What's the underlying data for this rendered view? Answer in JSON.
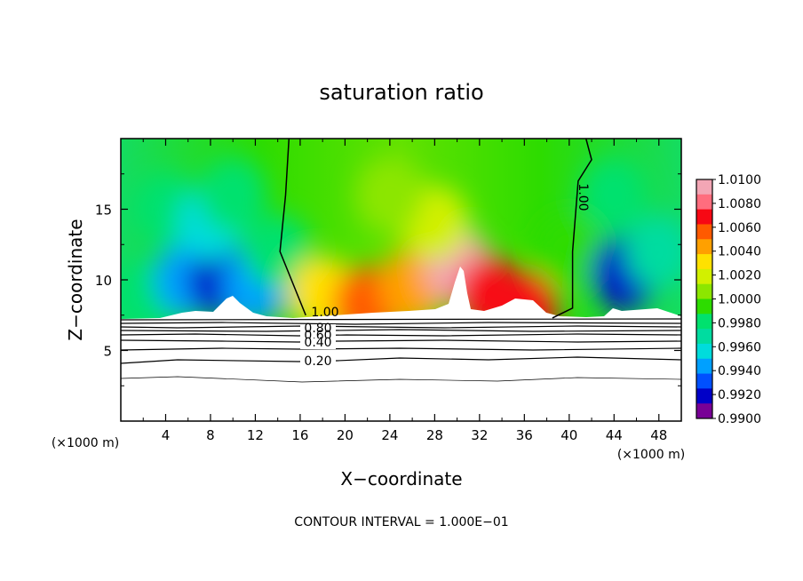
{
  "chart_data": {
    "type": "heatmap",
    "title": "saturation ratio",
    "xlabel": "X−coordinate",
    "ylabel": "Z−coordinate",
    "x_units": "(×1000 m)",
    "z_units": "(×1000 m)",
    "xlim": [
      0,
      50
    ],
    "ylim": [
      0,
      20
    ],
    "x_ticks": [
      4,
      8,
      12,
      16,
      20,
      24,
      28,
      32,
      36,
      40,
      44,
      48
    ],
    "y_ticks": [
      5,
      10,
      15
    ],
    "footer": "CONTOUR INTERVAL = 1.000E−01",
    "colorbar": {
      "min": 0.99,
      "max": 1.01,
      "labels": [
        "1.0100",
        "1.0080",
        "1.0060",
        "1.0040",
        "1.0020",
        "1.0000",
        "0.9980",
        "0.9960",
        "0.9940",
        "0.9920",
        "0.9900"
      ],
      "colors": [
        "#f3a6b5",
        "#ff6d7e",
        "#f70814",
        "#ff5a00",
        "#ffa000",
        "#ffe100",
        "#d2f000",
        "#8ce600",
        "#2ddc00",
        "#00e16e",
        "#00dca0",
        "#00dcdc",
        "#00a0ff",
        "#0050ff",
        "#0000c8",
        "#780096"
      ]
    },
    "contour_labels": [
      "1.00",
      "1.00",
      "0.80",
      "0.60",
      "0.40",
      "0.20"
    ],
    "fill_cells": [
      {
        "x": 2,
        "z": 8.8,
        "v": 0.9975
      },
      {
        "x": 6,
        "z": 10,
        "v": 0.994
      },
      {
        "x": 9,
        "z": 10,
        "v": 0.9915
      },
      {
        "x": 12,
        "z": 9.5,
        "v": 0.9945
      },
      {
        "x": 4,
        "z": 15,
        "v": 0.9975
      },
      {
        "x": 8,
        "z": 14,
        "v": 0.9955
      },
      {
        "x": 10,
        "z": 16,
        "v": 0.9985
      },
      {
        "x": 14,
        "z": 12,
        "v": 0.9985
      },
      {
        "x": 18,
        "z": 9,
        "v": 1.003
      },
      {
        "x": 22,
        "z": 8.3,
        "v": 1.006
      },
      {
        "x": 26,
        "z": 9.5,
        "v": 1.004
      },
      {
        "x": 30,
        "z": 11,
        "v": 1.009
      },
      {
        "x": 33,
        "z": 9,
        "v": 1.007
      },
      {
        "x": 36,
        "z": 8,
        "v": 1.0065
      },
      {
        "x": 28,
        "z": 14,
        "v": 1.002
      },
      {
        "x": 24,
        "z": 16,
        "v": 1.0005
      },
      {
        "x": 40,
        "z": 12,
        "v": 0.9995
      },
      {
        "x": 45,
        "z": 10.5,
        "v": 0.992
      },
      {
        "x": 48,
        "z": 12,
        "v": 0.997
      },
      {
        "x": 44,
        "z": 16,
        "v": 0.9985
      }
    ],
    "saturation_line_left": [
      [
        15,
        20
      ],
      [
        14.7,
        16
      ],
      [
        14.2,
        12
      ],
      [
        16.5,
        7.5
      ]
    ],
    "saturation_line_right": [
      [
        41.5,
        20
      ],
      [
        42,
        18.5
      ],
      [
        40.8,
        17
      ],
      [
        40.3,
        12
      ],
      [
        40.3,
        8
      ],
      [
        38.5,
        7.3
      ]
    ]
  }
}
